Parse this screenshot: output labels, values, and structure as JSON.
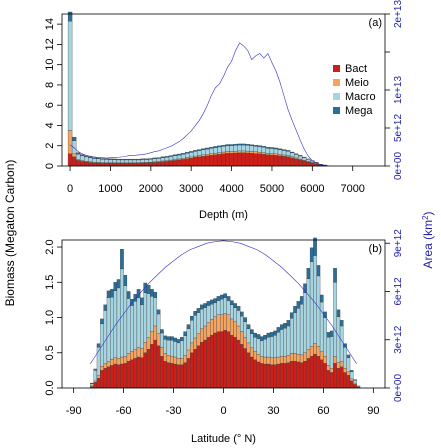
{
  "figure": {
    "shared_ylabel": "Biomass (Megaton Carbon)",
    "shared_y2label_main": "Area (km",
    "shared_y2label_sup": "2",
    "shared_y2label_end": ")"
  },
  "colors": {
    "bact": "#cc1f1a",
    "meio": "#f4a460",
    "macro": "#a6d4e0",
    "mega": "#2a6f9a",
    "area_line": "#3030cc",
    "right_axis": "#2222aa"
  },
  "chart_data": [
    {
      "id": "a",
      "type": "bar",
      "panel_label": "(a)",
      "xlabel": "Depth (m)",
      "ylabel": "Biomass (Megaton Carbon)",
      "y2label": "Area (km2)",
      "xlim": [
        -200,
        7800
      ],
      "ylim": [
        0,
        15
      ],
      "y2lim": [
        0,
        20000000000000.0
      ],
      "xticks": [
        0,
        1000,
        2000,
        3000,
        4000,
        5000,
        6000,
        7000
      ],
      "yticks": [
        0,
        2,
        4,
        6,
        8,
        10,
        12,
        14
      ],
      "ytick_labels": [
        "0",
        "2",
        "4",
        "6",
        "8",
        "10",
        "12",
        "14"
      ],
      "y2ticks": [
        0,
        5000000000000.0,
        10000000000000.0,
        15000000000000.0,
        20000000000000.0
      ],
      "y2tick_labels": [
        "0e+00",
        "5e+12",
        "1e+13",
        "",
        "2e+13"
      ],
      "legend": {
        "position": "right",
        "entries": [
          "Bact",
          "Meio",
          "Macro",
          "Mega"
        ]
      },
      "series_names": [
        "Bact",
        "Meio",
        "Macro",
        "Mega"
      ],
      "bin_width": 100,
      "x": [
        0,
        100,
        200,
        300,
        400,
        500,
        600,
        700,
        800,
        900,
        1000,
        1100,
        1200,
        1300,
        1400,
        1500,
        1600,
        1700,
        1800,
        1900,
        2000,
        2100,
        2200,
        2300,
        2400,
        2500,
        2600,
        2700,
        2800,
        2900,
        3000,
        3100,
        3200,
        3300,
        3400,
        3500,
        3600,
        3700,
        3800,
        3900,
        4000,
        4100,
        4200,
        4300,
        4400,
        4500,
        4600,
        4700,
        4800,
        4900,
        5000,
        5100,
        5200,
        5300,
        5400,
        5500,
        5600,
        5700,
        5800,
        5900,
        6000,
        6100,
        6200,
        6300
      ],
      "bact": [
        1.2,
        0.9,
        0.55,
        0.45,
        0.4,
        0.35,
        0.3,
        0.3,
        0.28,
        0.28,
        0.28,
        0.27,
        0.27,
        0.27,
        0.27,
        0.28,
        0.28,
        0.28,
        0.3,
        0.3,
        0.32,
        0.35,
        0.38,
        0.42,
        0.45,
        0.5,
        0.55,
        0.6,
        0.65,
        0.72,
        0.78,
        0.85,
        0.9,
        0.95,
        1.0,
        1.05,
        1.1,
        1.15,
        1.2,
        1.25,
        1.25,
        1.28,
        1.3,
        1.3,
        1.28,
        1.25,
        1.22,
        1.2,
        1.15,
        1.1,
        1.08,
        1.05,
        1.0,
        0.95,
        0.9,
        0.8,
        0.7,
        0.6,
        0.5,
        0.4,
        0.3,
        0.2,
        0.1,
        0.05
      ],
      "meio": [
        2.3,
        0.3,
        0.12,
        0.1,
        0.08,
        0.07,
        0.06,
        0.06,
        0.05,
        0.05,
        0.05,
        0.05,
        0.05,
        0.05,
        0.05,
        0.05,
        0.05,
        0.05,
        0.06,
        0.06,
        0.06,
        0.07,
        0.07,
        0.08,
        0.08,
        0.09,
        0.1,
        0.1,
        0.1,
        0.12,
        0.12,
        0.13,
        0.14,
        0.15,
        0.15,
        0.16,
        0.17,
        0.17,
        0.18,
        0.18,
        0.18,
        0.19,
        0.19,
        0.19,
        0.19,
        0.18,
        0.18,
        0.17,
        0.17,
        0.16,
        0.16,
        0.15,
        0.15,
        0.14,
        0.13,
        0.12,
        0.1,
        0.09,
        0.08,
        0.06,
        0.05,
        0.04,
        0.02,
        0.01
      ],
      "macro": [
        10.8,
        1.3,
        0.5,
        0.45,
        0.42,
        0.4,
        0.38,
        0.35,
        0.33,
        0.32,
        0.3,
        0.3,
        0.28,
        0.28,
        0.28,
        0.27,
        0.27,
        0.27,
        0.28,
        0.28,
        0.28,
        0.3,
        0.3,
        0.32,
        0.33,
        0.35,
        0.37,
        0.38,
        0.4,
        0.42,
        0.44,
        0.46,
        0.48,
        0.5,
        0.52,
        0.54,
        0.55,
        0.56,
        0.57,
        0.58,
        0.58,
        0.58,
        0.58,
        0.58,
        0.57,
        0.56,
        0.55,
        0.54,
        0.52,
        0.5,
        0.49,
        0.48,
        0.46,
        0.44,
        0.42,
        0.38,
        0.34,
        0.3,
        0.25,
        0.2,
        0.15,
        0.1,
        0.05,
        0.03
      ],
      "mega": [
        0.9,
        0.35,
        0.15,
        0.12,
        0.1,
        0.1,
        0.09,
        0.09,
        0.08,
        0.08,
        0.08,
        0.08,
        0.08,
        0.08,
        0.08,
        0.08,
        0.08,
        0.08,
        0.08,
        0.08,
        0.08,
        0.08,
        0.08,
        0.09,
        0.09,
        0.09,
        0.1,
        0.1,
        0.1,
        0.1,
        0.1,
        0.1,
        0.1,
        0.11,
        0.11,
        0.11,
        0.11,
        0.11,
        0.11,
        0.11,
        0.11,
        0.11,
        0.11,
        0.11,
        0.11,
        0.11,
        0.1,
        0.1,
        0.1,
        0.1,
        0.1,
        0.1,
        0.09,
        0.09,
        0.09,
        0.08,
        0.07,
        0.06,
        0.05,
        0.04,
        0.03,
        0.02,
        0.01,
        0.01
      ],
      "area_line": {
        "x": [
          0,
          100,
          200,
          300,
          400,
          500,
          600,
          700,
          800,
          900,
          1000,
          1100,
          1200,
          1300,
          1400,
          1500,
          1600,
          1700,
          1800,
          1900,
          2000,
          2100,
          2200,
          2300,
          2400,
          2500,
          2600,
          2700,
          2800,
          2900,
          3000,
          3100,
          3200,
          3300,
          3400,
          3500,
          3600,
          3700,
          3800,
          3900,
          4000,
          4100,
          4200,
          4300,
          4400,
          4500,
          4600,
          4700,
          4800,
          4900,
          5000,
          5100,
          5200,
          5300,
          5400,
          5500,
          5600,
          5700,
          5800,
          5900,
          6000,
          6100,
          6200,
          6300,
          6400
        ],
        "y": [
          2800000000000.0,
          2400000000000.0,
          1900000000000.0,
          1600000000000.0,
          1400000000000.0,
          1300000000000.0,
          1200000000000.0,
          1100000000000.0,
          1100000000000.0,
          1050000000000.0,
          1100000000000.0,
          1100000000000.0,
          1150000000000.0,
          1200000000000.0,
          1300000000000.0,
          1400000000000.0,
          1400000000000.0,
          1450000000000.0,
          1500000000000.0,
          1600000000000.0,
          1750000000000.0,
          1900000000000.0,
          2000000000000.0,
          2200000000000.0,
          2400000000000.0,
          2600000000000.0,
          2900000000000.0,
          3200000000000.0,
          3600000000000.0,
          4100000000000.0,
          4600000000000.0,
          5300000000000.0,
          6000000000000.0,
          6900000000000.0,
          8000000000000.0,
          9300000000000.0,
          10300000000000.0,
          10800000000000.0,
          11800000000000.0,
          13000000000000.0,
          13800000000000.0,
          15200000000000.0,
          16200000000000.0,
          15800000000000.0,
          15200000000000.0,
          14000000000000.0,
          14500000000000.0,
          14800000000000.0,
          14200000000000.0,
          14800000000000.0,
          13600000000000.0,
          12500000000000.0,
          11000000000000.0,
          9200000000000.0,
          7400000000000.0,
          6000000000000.0,
          4700000000000.0,
          3400000000000.0,
          2200000000000.0,
          1300000000000.0,
          700000000000.0,
          400000000000.0,
          200000000000.0,
          100000000000.0,
          50000000000.0
        ]
      }
    },
    {
      "id": "b",
      "type": "bar",
      "panel_label": "(b)",
      "xlabel": "Latitude (° N)",
      "ylabel": "Biomass (Megaton Carbon)",
      "y2label": "Area (km2)",
      "xlim": [
        -97,
        97
      ],
      "ylim": [
        0,
        2.1
      ],
      "y2lim": [
        0,
        9200000000000.0
      ],
      "xticks": [
        -90,
        -60,
        -30,
        0,
        30,
        60,
        90
      ],
      "yticks": [
        0,
        0.5,
        1.0,
        1.5,
        2.0
      ],
      "ytick_labels": [
        "0.0",
        "0.5",
        "1.0",
        "1.5",
        "2.0"
      ],
      "y2ticks": [
        0,
        3000000000000.0,
        6000000000000.0,
        9000000000000.0
      ],
      "y2tick_labels": [
        "0e+00",
        "3e+12",
        "6e+12",
        "9e+12"
      ],
      "series_names": [
        "Bact",
        "Meio",
        "Macro",
        "Mega"
      ],
      "bin_width": 2,
      "x": [
        -79,
        -77,
        -75,
        -73,
        -71,
        -69,
        -67,
        -65,
        -63,
        -61,
        -59,
        -57,
        -55,
        -53,
        -51,
        -49,
        -47,
        -45,
        -43,
        -41,
        -39,
        -37,
        -35,
        -33,
        -31,
        -29,
        -27,
        -25,
        -23,
        -21,
        -19,
        -17,
        -15,
        -13,
        -11,
        -9,
        -7,
        -5,
        -3,
        -1,
        1,
        3,
        5,
        7,
        9,
        11,
        13,
        15,
        17,
        19,
        21,
        23,
        25,
        27,
        29,
        31,
        33,
        35,
        37,
        39,
        41,
        43,
        45,
        47,
        49,
        51,
        53,
        55,
        57,
        59,
        61,
        63,
        65,
        67,
        69,
        71,
        73,
        75,
        77,
        79,
        81
      ],
      "bact": [
        0.02,
        0.08,
        0.14,
        0.25,
        0.28,
        0.3,
        0.32,
        0.34,
        0.33,
        0.34,
        0.35,
        0.38,
        0.4,
        0.42,
        0.44,
        0.43,
        0.5,
        0.55,
        0.62,
        0.68,
        0.6,
        0.45,
        0.38,
        0.36,
        0.35,
        0.34,
        0.33,
        0.33,
        0.36,
        0.42,
        0.5,
        0.55,
        0.6,
        0.65,
        0.68,
        0.72,
        0.75,
        0.78,
        0.8,
        0.8,
        0.82,
        0.8,
        0.75,
        0.72,
        0.68,
        0.62,
        0.56,
        0.5,
        0.44,
        0.4,
        0.37,
        0.35,
        0.34,
        0.34,
        0.33,
        0.33,
        0.34,
        0.35,
        0.35,
        0.36,
        0.38,
        0.38,
        0.37,
        0.36,
        0.38,
        0.42,
        0.45,
        0.48,
        0.45,
        0.4,
        0.35,
        0.25,
        0.22,
        0.35,
        0.28,
        0.3,
        0.22,
        0.18,
        0.1,
        0.05,
        0.02
      ],
      "meio": [
        0.01,
        0.02,
        0.04,
        0.06,
        0.07,
        0.08,
        0.09,
        0.09,
        0.09,
        0.1,
        0.1,
        0.11,
        0.12,
        0.13,
        0.14,
        0.13,
        0.15,
        0.17,
        0.18,
        0.2,
        0.17,
        0.13,
        0.11,
        0.1,
        0.1,
        0.1,
        0.09,
        0.09,
        0.1,
        0.12,
        0.14,
        0.16,
        0.17,
        0.19,
        0.2,
        0.21,
        0.22,
        0.23,
        0.24,
        0.24,
        0.24,
        0.24,
        0.23,
        0.22,
        0.2,
        0.18,
        0.16,
        0.14,
        0.13,
        0.12,
        0.11,
        0.1,
        0.1,
        0.1,
        0.1,
        0.1,
        0.1,
        0.1,
        0.1,
        0.1,
        0.11,
        0.11,
        0.11,
        0.11,
        0.12,
        0.13,
        0.14,
        0.15,
        0.14,
        0.12,
        0.1,
        0.07,
        0.06,
        0.1,
        0.08,
        0.08,
        0.06,
        0.05,
        0.03,
        0.01,
        0.0
      ],
      "macro": [
        0.03,
        0.15,
        0.4,
        0.6,
        0.75,
        0.9,
        0.88,
        0.95,
        1.0,
        1.25,
        1.0,
        0.78,
        0.65,
        0.68,
        0.7,
        0.62,
        0.7,
        0.62,
        0.5,
        0.4,
        0.28,
        0.2,
        0.2,
        0.22,
        0.23,
        0.22,
        0.22,
        0.25,
        0.28,
        0.3,
        0.32,
        0.32,
        0.3,
        0.28,
        0.26,
        0.24,
        0.22,
        0.2,
        0.2,
        0.22,
        0.22,
        0.2,
        0.2,
        0.2,
        0.22,
        0.22,
        0.22,
        0.2,
        0.2,
        0.2,
        0.22,
        0.22,
        0.25,
        0.28,
        0.3,
        0.32,
        0.35,
        0.38,
        0.4,
        0.42,
        0.5,
        0.58,
        0.65,
        0.72,
        0.85,
        1.0,
        1.2,
        1.25,
        1.0,
        0.7,
        0.55,
        0.4,
        0.45,
        1.05,
        0.65,
        0.5,
        0.3,
        0.2,
        0.1,
        0.05,
        0.01
      ],
      "mega": [
        0.01,
        0.02,
        0.05,
        0.07,
        0.08,
        0.1,
        0.11,
        0.12,
        0.12,
        0.28,
        0.15,
        0.1,
        0.09,
        0.1,
        0.12,
        0.1,
        0.14,
        0.12,
        0.1,
        0.08,
        0.06,
        0.05,
        0.05,
        0.05,
        0.05,
        0.05,
        0.05,
        0.05,
        0.06,
        0.06,
        0.06,
        0.06,
        0.06,
        0.06,
        0.06,
        0.06,
        0.06,
        0.06,
        0.06,
        0.06,
        0.06,
        0.06,
        0.06,
        0.06,
        0.06,
        0.06,
        0.06,
        0.06,
        0.06,
        0.06,
        0.06,
        0.06,
        0.06,
        0.06,
        0.06,
        0.06,
        0.07,
        0.07,
        0.07,
        0.08,
        0.08,
        0.09,
        0.1,
        0.11,
        0.13,
        0.15,
        0.2,
        0.25,
        0.15,
        0.1,
        0.08,
        0.07,
        0.08,
        0.2,
        0.1,
        0.08,
        0.05,
        0.04,
        0.02,
        0.01,
        0.0
      ],
      "area_line": {
        "x": [
          -80,
          -75,
          -70,
          -65,
          -60,
          -55,
          -50,
          -45,
          -40,
          -35,
          -30,
          -25,
          -20,
          -15,
          -10,
          -5,
          0,
          5,
          10,
          15,
          20,
          25,
          30,
          35,
          40,
          45,
          50,
          55,
          60,
          65,
          70,
          75,
          80
        ],
        "y": [
          1500000000000.0,
          2300000000000.0,
          3100000000000.0,
          3900000000000.0,
          4600000000000.0,
          5300000000000.0,
          5900000000000.0,
          6500000000000.0,
          7000000000000.0,
          7500000000000.0,
          7900000000000.0,
          8300000000000.0,
          8600000000000.0,
          8800000000000.0,
          9000000000000.0,
          9100000000000.0,
          9150000000000.0,
          9100000000000.0,
          9000000000000.0,
          8800000000000.0,
          8600000000000.0,
          8300000000000.0,
          7900000000000.0,
          7500000000000.0,
          7000000000000.0,
          6500000000000.0,
          5900000000000.0,
          5300000000000.0,
          4600000000000.0,
          3900000000000.0,
          3100000000000.0,
          2300000000000.0,
          1500000000000.0
        ]
      }
    }
  ]
}
